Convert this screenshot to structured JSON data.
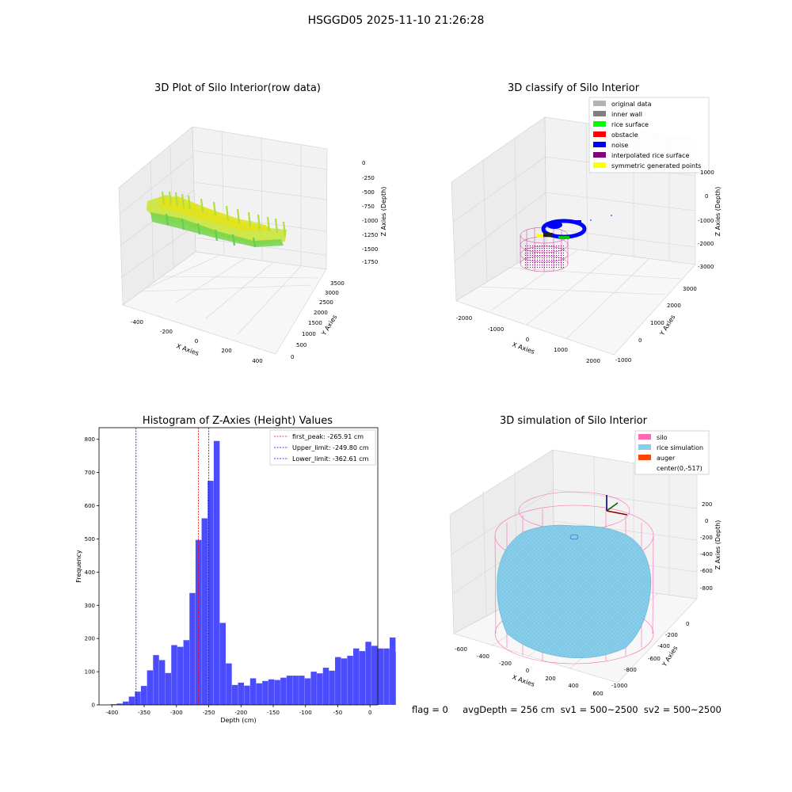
{
  "suptitle": "HSGGD05 2025-11-10 21:26:28",
  "footer": "flag = 0     avgDepth = 256 cm  sv1 = 500~2500  sv2 = 500~2500",
  "panels": {
    "p1": {
      "title": "3D Plot of Silo Interior(row data)",
      "xlabel": "X Axies",
      "ylabel": "Y Axies",
      "zlabel": "Z Axies (Depth)",
      "xticks": [
        "-400",
        "-200",
        "0",
        "200",
        "400"
      ],
      "yticks": [
        "0",
        "500",
        "1000",
        "1500",
        "2000",
        "2500",
        "3000",
        "3500"
      ],
      "zticks": [
        "0",
        "-250",
        "-500",
        "-750",
        "-1000",
        "-1250",
        "-1500",
        "-1750"
      ]
    },
    "p2": {
      "title": "3D classify of Silo Interior",
      "xlabel": "X Axies",
      "ylabel": "Y Axies",
      "zlabel": "Z Axies (Depth)",
      "xticks": [
        "-2000",
        "-1000",
        "0",
        "1000",
        "2000"
      ],
      "yticks": [
        "-1000",
        "0",
        "1000",
        "2000",
        "3000"
      ],
      "zticks": [
        "1000",
        "0",
        "-1000",
        "-2000",
        "-3000"
      ],
      "legend": [
        {
          "label": "original data",
          "color": "#b3b3b3"
        },
        {
          "label": "inner wall",
          "color": "#808080"
        },
        {
          "label": "rice surface",
          "color": "#00ff00"
        },
        {
          "label": "obstacle",
          "color": "#ff0000"
        },
        {
          "label": "noise",
          "color": "#0000ff"
        },
        {
          "label": "interpolated rice surface",
          "color": "#800080"
        },
        {
          "label": "symmetric generated points",
          "color": "#ffff00"
        }
      ]
    },
    "p4": {
      "title": "3D simulation of Silo Interior",
      "xlabel": "X Axies",
      "ylabel": "Y Axies",
      "zlabel": "Z Axies (Depth)",
      "xticks": [
        "-600",
        "-400",
        "-200",
        "0",
        "200",
        "400",
        "600"
      ],
      "yticks": [
        "-1000",
        "-800",
        "-600",
        "-400",
        "-200",
        "0"
      ],
      "zticks": [
        "200",
        "0",
        "-200",
        "-400",
        "-600",
        "-800"
      ],
      "legend": [
        {
          "label": "silo",
          "color": "#ff69b4"
        },
        {
          "label": "rice simulation",
          "color": "#87ceeb"
        },
        {
          "label": "auger",
          "color": "#ff4500"
        },
        {
          "label": "center(0,-517)",
          "color": "#ffffff"
        }
      ]
    }
  },
  "chart_data": {
    "type": "bar",
    "title": "Histogram of Z-Axies (Height) Values",
    "xlabel": "Depth (cm)",
    "ylabel": "Frequency",
    "xlim": [
      -420,
      12
    ],
    "ylim": [
      0,
      835
    ],
    "xticks": [
      -400,
      -350,
      -300,
      -250,
      -200,
      -150,
      -100,
      -50,
      0
    ],
    "yticks": [
      0,
      100,
      200,
      300,
      400,
      500,
      600,
      700,
      800
    ],
    "bar_color": "#0000ff",
    "bin_edges_start": -402,
    "bin_width": 9.4,
    "values": [
      2,
      4,
      10,
      25,
      40,
      57,
      104,
      150,
      135,
      96,
      180,
      175,
      195,
      337,
      497,
      562,
      675,
      795,
      247,
      125,
      60,
      67,
      58,
      80,
      65,
      72,
      77,
      75,
      82,
      88,
      88,
      88,
      80,
      100,
      95,
      112,
      103,
      144,
      140,
      148,
      170,
      162,
      190,
      178,
      170,
      170,
      203,
      160,
      8
    ],
    "lines": [
      {
        "label": "first_peak: -265.91 cm",
        "x": -265.91,
        "color": "#ff0000"
      },
      {
        "label": "Upper_limit: -249.80 cm",
        "x": -249.8,
        "color": "#0000ff"
      },
      {
        "label": "Lower_limit: -362.61 cm",
        "x": -362.61,
        "color": "#0000ff"
      }
    ],
    "legend_position": "upper right"
  }
}
